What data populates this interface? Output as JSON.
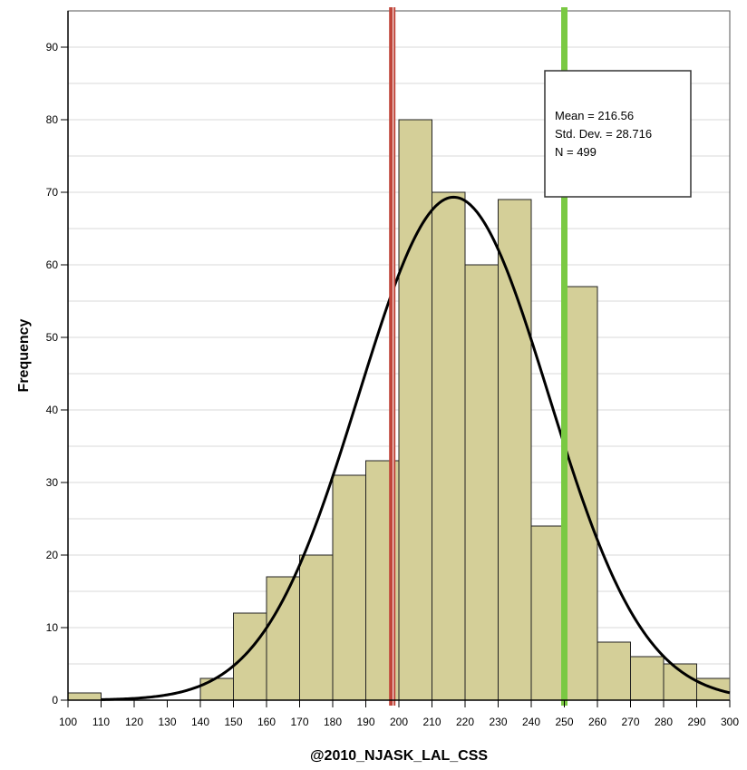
{
  "chart_data": {
    "type": "bar",
    "subtype": "histogram",
    "title": "",
    "xlabel": "@2010_NJASK_LAL_CSS",
    "ylabel": "Frequency",
    "xlim": [
      100,
      300
    ],
    "ylim": [
      0,
      95
    ],
    "x_ticks": [
      100,
      110,
      120,
      130,
      140,
      150,
      160,
      170,
      180,
      190,
      200,
      210,
      220,
      230,
      240,
      250,
      260,
      270,
      280,
      290,
      300
    ],
    "y_ticks": [
      0,
      10,
      20,
      30,
      40,
      50,
      60,
      70,
      80,
      90
    ],
    "grid": true,
    "bin_width": 10,
    "bins": [
      {
        "start": 100,
        "end": 110,
        "count": 1
      },
      {
        "start": 110,
        "end": 120,
        "count": 0
      },
      {
        "start": 120,
        "end": 130,
        "count": 0
      },
      {
        "start": 130,
        "end": 140,
        "count": 0
      },
      {
        "start": 140,
        "end": 150,
        "count": 3
      },
      {
        "start": 150,
        "end": 160,
        "count": 12
      },
      {
        "start": 160,
        "end": 170,
        "count": 17
      },
      {
        "start": 170,
        "end": 180,
        "count": 20
      },
      {
        "start": 180,
        "end": 190,
        "count": 31
      },
      {
        "start": 190,
        "end": 200,
        "count": 33
      },
      {
        "start": 200,
        "end": 210,
        "count": 80
      },
      {
        "start": 210,
        "end": 220,
        "count": 70
      },
      {
        "start": 220,
        "end": 230,
        "count": 60
      },
      {
        "start": 230,
        "end": 240,
        "count": 69
      },
      {
        "start": 240,
        "end": 250,
        "count": 24
      },
      {
        "start": 250,
        "end": 260,
        "count": 57
      },
      {
        "start": 260,
        "end": 270,
        "count": 8
      },
      {
        "start": 270,
        "end": 280,
        "count": 6
      },
      {
        "start": 280,
        "end": 290,
        "count": 5
      },
      {
        "start": 290,
        "end": 300,
        "count": 3
      }
    ],
    "normal_curve": {
      "mean": 216.56,
      "std_dev": 28.716,
      "n": 499
    },
    "stats_box": {
      "mean_text": "Mean = 216.56",
      "std_text": "Std. Dev. = 28.716",
      "n_text": "N = 499",
      "placement": "top-right"
    },
    "reference_lines": [
      {
        "x": 198,
        "color": "#c0453a"
      },
      {
        "x": 250,
        "color": "#7ac943"
      }
    ],
    "colors": {
      "bar_fill": "#d4cf98",
      "bar_stroke": "#222222",
      "curve": "#000000",
      "grid": "#d9d9d9",
      "background": "#ffffff"
    }
  }
}
